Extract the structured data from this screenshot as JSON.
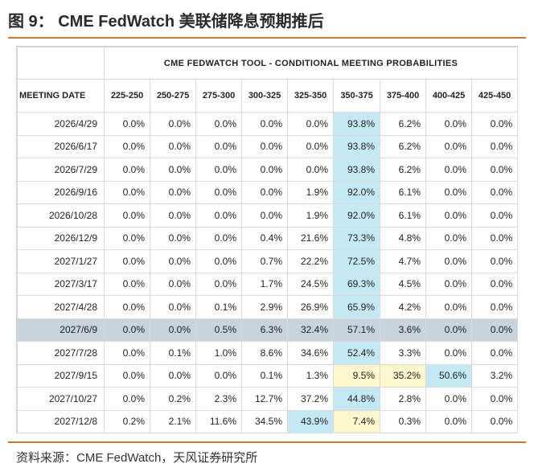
{
  "title": "图 9： CME FedWatch 美联储降息预期推后",
  "source": "资料来源：CME FedWatch，天风证券研究所",
  "colors": {
    "accent": "#c8782a",
    "highlight_row": "#c9d3dc",
    "highlight_blue": "#c5e8f5",
    "highlight_yellow": "#fbf6cc"
  },
  "chart_data": {
    "type": "table",
    "title": "CME FEDWATCH TOOL - CONDITIONAL MEETING PROBABILITIES",
    "row_header": "MEETING DATE",
    "columns": [
      "225-250",
      "250-275",
      "275-300",
      "300-325",
      "325-350",
      "350-375",
      "375-400",
      "400-425",
      "425-450"
    ],
    "rows": [
      {
        "date": "2026/4/29",
        "values": [
          "0.0%",
          "0.0%",
          "0.0%",
          "0.0%",
          "0.0%",
          "93.8%",
          "6.2%",
          "0.0%",
          "0.0%"
        ]
      },
      {
        "date": "2026/6/17",
        "values": [
          "0.0%",
          "0.0%",
          "0.0%",
          "0.0%",
          "0.0%",
          "93.8%",
          "6.2%",
          "0.0%",
          "0.0%"
        ]
      },
      {
        "date": "2026/7/29",
        "values": [
          "0.0%",
          "0.0%",
          "0.0%",
          "0.0%",
          "0.0%",
          "93.8%",
          "6.2%",
          "0.0%",
          "0.0%"
        ]
      },
      {
        "date": "2026/9/16",
        "values": [
          "0.0%",
          "0.0%",
          "0.0%",
          "0.0%",
          "1.9%",
          "92.0%",
          "6.1%",
          "0.0%",
          "0.0%"
        ]
      },
      {
        "date": "2026/10/28",
        "values": [
          "0.0%",
          "0.0%",
          "0.0%",
          "0.0%",
          "1.9%",
          "92.0%",
          "6.1%",
          "0.0%",
          "0.0%"
        ]
      },
      {
        "date": "2026/12/9",
        "values": [
          "0.0%",
          "0.0%",
          "0.0%",
          "0.4%",
          "21.6%",
          "73.3%",
          "4.8%",
          "0.0%",
          "0.0%"
        ]
      },
      {
        "date": "2027/1/27",
        "values": [
          "0.0%",
          "0.0%",
          "0.0%",
          "0.7%",
          "22.2%",
          "72.5%",
          "4.7%",
          "0.0%",
          "0.0%"
        ]
      },
      {
        "date": "2027/3/17",
        "values": [
          "0.0%",
          "0.0%",
          "0.0%",
          "1.7%",
          "24.5%",
          "69.3%",
          "4.5%",
          "0.0%",
          "0.0%"
        ]
      },
      {
        "date": "2027/4/28",
        "values": [
          "0.0%",
          "0.0%",
          "0.1%",
          "2.9%",
          "26.9%",
          "65.9%",
          "4.2%",
          "0.0%",
          "0.0%"
        ]
      },
      {
        "date": "2027/6/9",
        "values": [
          "0.0%",
          "0.0%",
          "0.5%",
          "6.3%",
          "32.4%",
          "57.1%",
          "3.6%",
          "0.0%",
          "0.0%"
        ]
      },
      {
        "date": "2027/7/28",
        "values": [
          "0.0%",
          "0.1%",
          "1.0%",
          "8.6%",
          "34.6%",
          "52.4%",
          "3.3%",
          "0.0%",
          "0.0%"
        ]
      },
      {
        "date": "2027/9/15",
        "values": [
          "0.0%",
          "0.0%",
          "0.0%",
          "0.1%",
          "1.3%",
          "9.5%",
          "35.2%",
          "50.6%",
          "3.2%"
        ]
      },
      {
        "date": "2027/10/27",
        "values": [
          "0.0%",
          "0.2%",
          "2.3%",
          "12.7%",
          "37.2%",
          "44.8%",
          "2.8%",
          "0.0%",
          "0.0%"
        ]
      },
      {
        "date": "2027/12/8",
        "values": [
          "0.2%",
          "2.1%",
          "11.6%",
          "34.5%",
          "43.9%",
          "7.4%",
          "0.3%",
          "0.0%",
          "0.0%"
        ]
      }
    ],
    "highlighted_row": "2027/6/9",
    "highlight_cells": [
      {
        "row": 0,
        "col": 5,
        "style": "blue"
      },
      {
        "row": 1,
        "col": 5,
        "style": "blue"
      },
      {
        "row": 2,
        "col": 5,
        "style": "blue"
      },
      {
        "row": 3,
        "col": 5,
        "style": "blue"
      },
      {
        "row": 4,
        "col": 5,
        "style": "blue"
      },
      {
        "row": 5,
        "col": 5,
        "style": "blue"
      },
      {
        "row": 6,
        "col": 5,
        "style": "blue"
      },
      {
        "row": 7,
        "col": 5,
        "style": "blue"
      },
      {
        "row": 8,
        "col": 5,
        "style": "blue"
      },
      {
        "row": 10,
        "col": 5,
        "style": "blue"
      },
      {
        "row": 11,
        "col": 5,
        "style": "yellow"
      },
      {
        "row": 11,
        "col": 6,
        "style": "yellow"
      },
      {
        "row": 11,
        "col": 7,
        "style": "blue"
      },
      {
        "row": 12,
        "col": 5,
        "style": "blue"
      },
      {
        "row": 13,
        "col": 4,
        "style": "blue"
      },
      {
        "row": 13,
        "col": 5,
        "style": "yellow"
      }
    ]
  }
}
